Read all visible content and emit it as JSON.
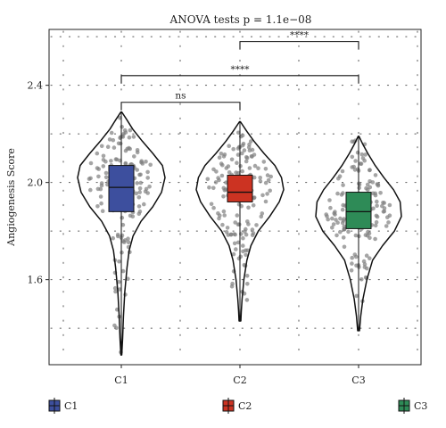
{
  "chart_data": {
    "type": "violin",
    "title": "ANOVA tests p = 1.1e−08",
    "ylabel": "Angiogenesis Score",
    "xlabel": "",
    "ylim": [
      1.25,
      2.63
    ],
    "yticks": [
      1.6,
      2.0,
      2.4
    ],
    "ytick_labels": [
      "1.6",
      "2.0",
      "2.4"
    ],
    "grid": "dotted",
    "categories": [
      "C1",
      "C2",
      "C3"
    ],
    "series": [
      {
        "name": "C1",
        "color": "#3d4f9e",
        "box": {
          "q1": 1.88,
          "median": 1.98,
          "q3": 2.07
        },
        "violin": {
          "min": 1.29,
          "max": 2.29
        },
        "width_profile": [
          [
            1.29,
            0.01
          ],
          [
            1.36,
            0.03
          ],
          [
            1.45,
            0.05
          ],
          [
            1.55,
            0.08
          ],
          [
            1.65,
            0.13
          ],
          [
            1.72,
            0.18
          ],
          [
            1.78,
            0.27
          ],
          [
            1.84,
            0.45
          ],
          [
            1.9,
            0.72
          ],
          [
            1.96,
            0.92
          ],
          [
            2.02,
            1.0
          ],
          [
            2.07,
            0.94
          ],
          [
            2.12,
            0.72
          ],
          [
            2.17,
            0.48
          ],
          [
            2.22,
            0.26
          ],
          [
            2.26,
            0.12
          ],
          [
            2.29,
            0.01
          ]
        ]
      },
      {
        "name": "C2",
        "color": "#cc3322",
        "box": {
          "q1": 1.92,
          "median": 1.96,
          "q3": 2.03
        },
        "violin": {
          "min": 1.43,
          "max": 2.25
        },
        "width_profile": [
          [
            1.43,
            0.02
          ],
          [
            1.47,
            0.03
          ],
          [
            1.52,
            0.05
          ],
          [
            1.6,
            0.09
          ],
          [
            1.68,
            0.16
          ],
          [
            1.74,
            0.25
          ],
          [
            1.8,
            0.42
          ],
          [
            1.86,
            0.68
          ],
          [
            1.92,
            0.9
          ],
          [
            1.97,
            1.0
          ],
          [
            2.02,
            0.95
          ],
          [
            2.07,
            0.8
          ],
          [
            2.12,
            0.55
          ],
          [
            2.17,
            0.32
          ],
          [
            2.21,
            0.16
          ],
          [
            2.25,
            0.01
          ]
        ]
      },
      {
        "name": "C3",
        "color": "#2e8b57",
        "box": {
          "q1": 1.81,
          "median": 1.88,
          "q3": 1.96
        },
        "violin": {
          "min": 1.39,
          "max": 2.19
        },
        "width_profile": [
          [
            1.39,
            0.02
          ],
          [
            1.45,
            0.05
          ],
          [
            1.52,
            0.1
          ],
          [
            1.6,
            0.19
          ],
          [
            1.68,
            0.32
          ],
          [
            1.74,
            0.55
          ],
          [
            1.8,
            0.82
          ],
          [
            1.86,
            0.98
          ],
          [
            1.92,
            0.95
          ],
          [
            1.97,
            0.8
          ],
          [
            2.02,
            0.58
          ],
          [
            2.07,
            0.38
          ],
          [
            2.12,
            0.21
          ],
          [
            2.16,
            0.09
          ],
          [
            2.19,
            0.01
          ]
        ]
      }
    ],
    "comparisons": [
      {
        "from": "C1",
        "to": "C2",
        "label": "ns",
        "y": 2.33
      },
      {
        "from": "C1",
        "to": "C3",
        "label": "****",
        "y": 2.44
      },
      {
        "from": "C2",
        "to": "C3",
        "label": "****",
        "y": 2.58
      }
    ],
    "legend": {
      "position": "bottom",
      "entries": [
        "C1",
        "C2",
        "C3"
      ]
    }
  }
}
